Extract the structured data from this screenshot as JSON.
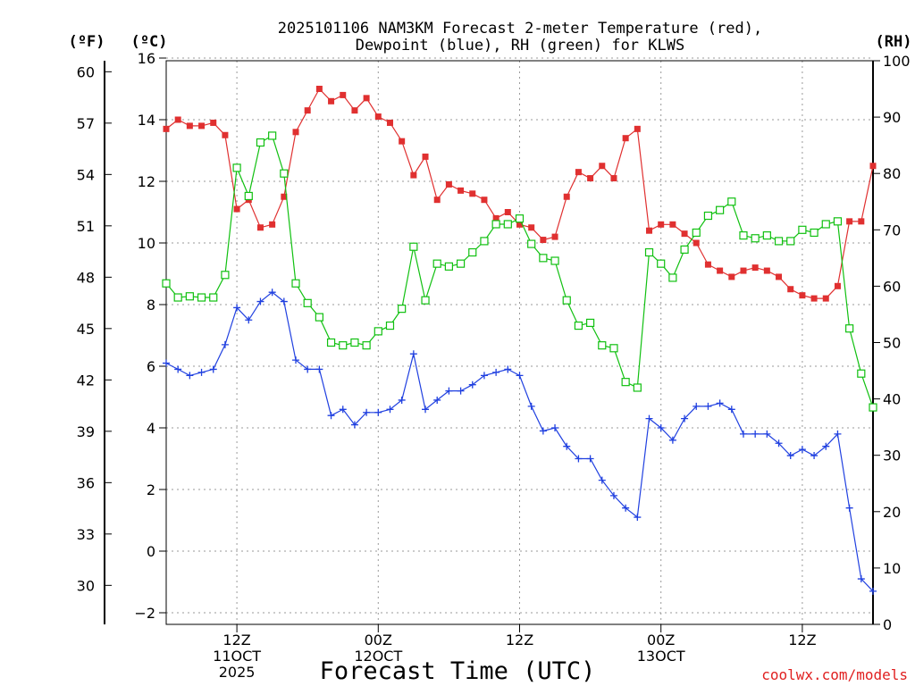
{
  "colors": {
    "temperature": "#e03030",
    "dewpoint": "#2040e0",
    "rh": "#10c010",
    "grid": "#999999",
    "credit": "#e02020"
  },
  "chart_data": {
    "type": "line",
    "title_line1": "2025101106 NAM3KM Forecast 2-meter Temperature (red),",
    "title_line2": "Dewpoint (blue), RH (green) for KLWS",
    "xlabel": "Forecast Time (UTC)",
    "credit": "coolwx.com/models",
    "unit_left_f": "(ºF)",
    "unit_left_c": "(ºC)",
    "unit_right": "(RH)",
    "x_range_hours": [
      0,
      60
    ],
    "grid": true,
    "y_left_c_range": [
      -2.5,
      16
    ],
    "y_left_c_ticks": [
      "16",
      "14",
      "12",
      "10",
      "8",
      "6",
      "4",
      "2",
      "0",
      "−2"
    ],
    "y_left_f_ticks": [
      "60",
      "57",
      "54",
      "51",
      "48",
      "45",
      "42",
      "39",
      "36",
      "33",
      "30"
    ],
    "y_right_range": [
      0,
      100
    ],
    "y_right_ticks": [
      "100",
      "90",
      "80",
      "70",
      "60",
      "50",
      "40",
      "30",
      "20",
      "10",
      "0"
    ],
    "x_ticks": [
      {
        "hour": 6,
        "lines": [
          "12Z",
          "11OCT",
          "2025"
        ]
      },
      {
        "hour": 18,
        "lines": [
          "00Z",
          "12OCT"
        ]
      },
      {
        "hour": 30,
        "lines": [
          "12Z"
        ]
      },
      {
        "hour": 42,
        "lines": [
          "00Z",
          "13OCT"
        ]
      },
      {
        "hour": 54,
        "lines": [
          "12Z"
        ]
      }
    ],
    "series": [
      {
        "name": "Temperature",
        "units": "C",
        "color": "#e03030",
        "marker": "filled-square",
        "values": [
          13.7,
          14.0,
          13.8,
          13.8,
          13.9,
          13.5,
          11.1,
          11.4,
          10.5,
          10.6,
          11.5,
          13.6,
          14.3,
          15.0,
          14.6,
          14.8,
          14.3,
          14.7,
          14.1,
          13.9,
          13.3,
          12.2,
          12.8,
          11.4,
          11.9,
          11.7,
          11.6,
          11.4,
          10.8,
          11.0,
          10.6,
          10.5,
          10.1,
          10.2,
          11.5,
          12.3,
          12.1,
          12.5,
          12.1,
          13.4,
          13.7,
          10.4,
          10.6,
          10.6,
          10.3,
          10.0,
          9.3,
          9.1,
          8.9,
          9.1,
          9.2,
          9.1,
          8.9,
          8.5,
          8.3,
          8.2,
          8.2,
          8.6,
          10.7,
          10.7,
          12.5
        ]
      },
      {
        "name": "Dewpoint",
        "units": "C",
        "color": "#2040e0",
        "marker": "plus",
        "values": [
          6.1,
          5.9,
          5.7,
          5.8,
          5.9,
          6.7,
          7.9,
          7.5,
          8.1,
          8.4,
          8.1,
          6.2,
          5.9,
          5.9,
          4.4,
          4.6,
          4.1,
          4.5,
          4.5,
          4.6,
          4.9,
          6.4,
          4.6,
          4.9,
          5.2,
          5.2,
          5.4,
          5.7,
          5.8,
          5.9,
          5.7,
          4.7,
          3.9,
          4.0,
          3.4,
          3.0,
          3.0,
          2.3,
          1.8,
          1.4,
          1.1,
          4.3,
          4.0,
          3.6,
          4.3,
          4.7,
          4.7,
          4.8,
          4.6,
          3.8,
          3.8,
          3.8,
          3.5,
          3.1,
          3.3,
          3.1,
          3.4,
          3.8,
          1.4,
          -0.9,
          -1.3
        ]
      },
      {
        "name": "RH",
        "units": "%",
        "color": "#10c010",
        "marker": "open-square",
        "values": [
          60.5,
          58,
          58.2,
          58,
          58,
          62,
          81,
          76,
          85.5,
          86.7,
          80,
          60.5,
          57,
          54.5,
          50,
          49.5,
          50,
          49.5,
          52,
          53,
          56,
          67,
          57.5,
          64,
          63.5,
          64,
          66,
          68,
          71,
          71,
          72,
          67.5,
          65,
          64.5,
          57.5,
          53,
          53.5,
          49.5,
          49,
          43,
          42,
          66,
          64,
          61.5,
          66.5,
          69.5,
          72.5,
          73.5,
          75,
          69,
          68.5,
          69,
          68,
          68,
          70,
          69.5,
          71,
          71.5,
          52.5,
          44.5,
          38.5
        ]
      }
    ]
  }
}
